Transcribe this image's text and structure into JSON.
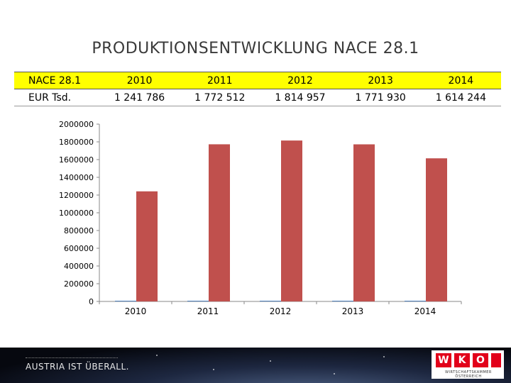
{
  "title": "PRODUKTIONSENTWICKLUNG NACE 28.1",
  "table": {
    "header": [
      "NACE 28.1",
      "2010",
      "2011",
      "2012",
      "2013",
      "2014"
    ],
    "row": [
      "EUR Tsd.",
      "1 241 786",
      "1 772 512",
      "1 814 957",
      "1 771 930",
      "1 614 244"
    ]
  },
  "chart_data": {
    "type": "bar",
    "categories": [
      "2010",
      "2011",
      "2012",
      "2013",
      "2014"
    ],
    "series": [
      {
        "values": [
          0,
          0,
          0,
          0,
          0
        ],
        "color": "#4f81bd"
      },
      {
        "values": [
          1241786,
          1772512,
          1814957,
          1771930,
          1614244
        ],
        "color": "#c0504d"
      }
    ],
    "ylim": [
      0,
      2000000
    ],
    "yticks": [
      "0",
      "200000",
      "400000",
      "600000",
      "800000",
      "1000000",
      "1200000",
      "1400000",
      "1600000",
      "1800000",
      "2000000"
    ],
    "legend": "none",
    "grid": false
  },
  "footer": {
    "slogan": "AUSTRIA IST ÜBERALL.",
    "logo_letters": [
      "W",
      "K",
      "O"
    ],
    "logo_subtext": "WIRTSCHAFTSKAMMER ÖSTERREICH"
  }
}
